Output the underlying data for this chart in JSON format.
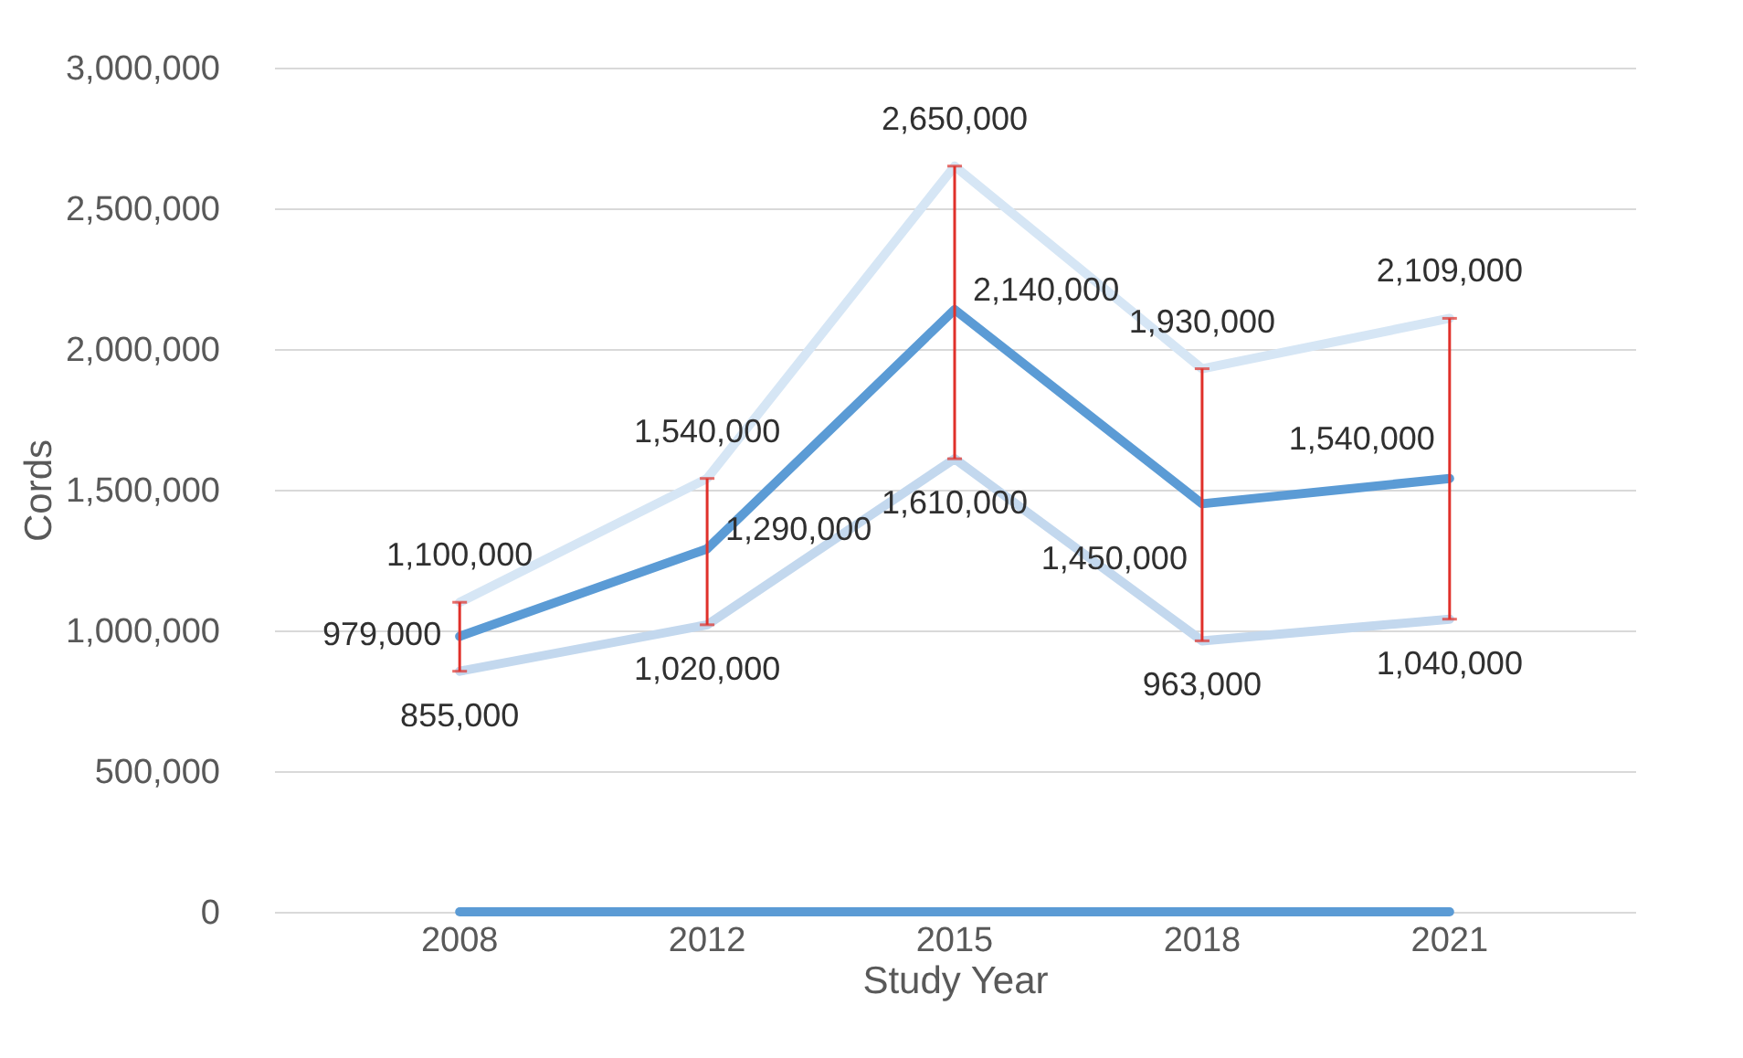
{
  "chart_data": {
    "type": "line",
    "xlabel": "Study Year",
    "ylabel": "Cords",
    "categories": [
      "2008",
      "2012",
      "2015",
      "2018",
      "2021"
    ],
    "series": [
      {
        "color": "#d6e6f5",
        "values": [
          1100000,
          1540000,
          2650000,
          1930000,
          2109000
        ],
        "value_labels": [
          "1,100,000",
          "1,540,000",
          "2,650,000",
          "1,930,000",
          "2,109,000"
        ]
      },
      {
        "color": "#5b9bd5",
        "values": [
          979000,
          1290000,
          2140000,
          1450000,
          1540000
        ],
        "value_labels": [
          "979,000",
          "1,290,000",
          "2,140,000",
          "1,450,000",
          "1,540,000"
        ],
        "errors": [
          [
            855000,
            1100000
          ],
          [
            1020000,
            1540000
          ],
          [
            1610000,
            2650000
          ],
          [
            963000,
            1930000
          ],
          [
            1040000,
            2109000
          ]
        ]
      },
      {
        "color": "#c3d8ee",
        "values": [
          855000,
          1020000,
          1610000,
          963000,
          1040000
        ],
        "value_labels": [
          "855,000",
          "1,020,000",
          "1,610,000",
          "963,000",
          "1,040,000"
        ]
      },
      {
        "color": "#5b9bd5",
        "values": [
          0,
          0,
          0,
          0,
          0
        ]
      }
    ],
    "ylim": [
      0,
      3000000
    ],
    "yticks": [
      {
        "value": 0,
        "label": "0"
      },
      {
        "value": 500000,
        "label": "500,000"
      },
      {
        "value": 1000000,
        "label": "1,000,000"
      },
      {
        "value": 1500000,
        "label": "1,500,000"
      },
      {
        "value": 2000000,
        "label": "2,000,000"
      },
      {
        "value": 2500000,
        "label": "2,500,000"
      },
      {
        "value": 3000000,
        "label": "3,000,000"
      }
    ],
    "grid": "y",
    "legend": false,
    "marker": "none",
    "line_style": "solid"
  }
}
